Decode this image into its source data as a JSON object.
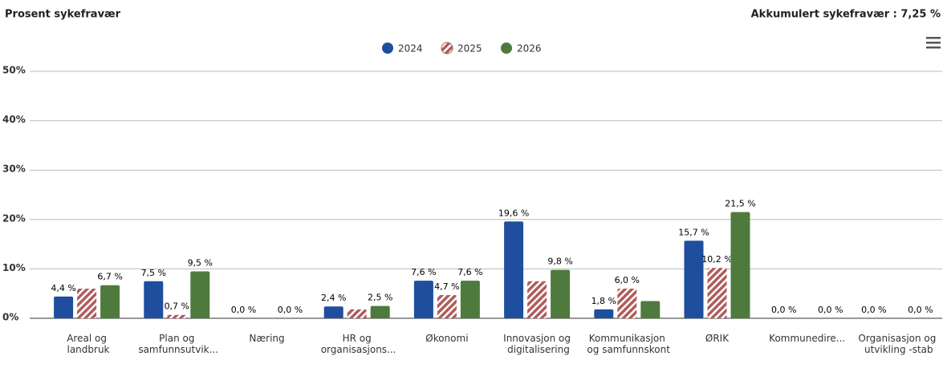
{
  "chart_data": {
    "type": "bar",
    "title": "Prosent sykefravær",
    "subtitle": "Akkumulert sykefravær : 7,25 %",
    "categories": [
      "Areal og landbruk",
      "Plan og samfunnsutvik...",
      "Næring",
      "HR og organisasjons...",
      "Økonomi",
      "Innovasjon og digitalisering",
      "Kommunikasjon og samfunnskont",
      "ØRIK",
      "Kommunedire...",
      "Organisasjon og utvikling -stab"
    ],
    "series": [
      {
        "name": "2024",
        "color": "#1f4e9e",
        "values": [
          4.4,
          7.5,
          0,
          2.4,
          7.6,
          19.6,
          1.8,
          15.7,
          0,
          0
        ],
        "value_labels": [
          "4,4 %",
          "7,5 %",
          "0,0 %",
          "2,4 %",
          "7,6 %",
          "19,6 %",
          "1,8 %",
          "15,7 %",
          "0,0 %",
          "0,0 %"
        ]
      },
      {
        "name": "2025",
        "color": "#b05c5c",
        "hatched": true,
        "values": [
          6.0,
          0.7,
          0,
          1.8,
          4.7,
          7.5,
          6.0,
          10.2,
          0,
          0
        ],
        "value_labels": [
          null,
          "0,7 %",
          null,
          null,
          "4,7 %",
          null,
          "6,0 %",
          "10,2 %",
          null,
          null
        ]
      },
      {
        "name": "2026",
        "color": "#4f7a3e",
        "values": [
          6.7,
          9.5,
          0,
          2.5,
          7.6,
          9.8,
          3.5,
          21.5,
          0,
          0
        ],
        "value_labels": [
          "6,7 %",
          "9,5 %",
          "0,0 %",
          "2,5 %",
          "7,6 %",
          "9,8 %",
          null,
          "21,5 %",
          "0,0 %",
          "0,0 %"
        ]
      }
    ],
    "ylim": [
      0,
      50
    ],
    "yticks": [
      {
        "value": 0,
        "label": "0%"
      },
      {
        "value": 10,
        "label": "10%"
      },
      {
        "value": 20,
        "label": "20%"
      },
      {
        "value": 30,
        "label": "30%"
      },
      {
        "value": 40,
        "label": "40%"
      },
      {
        "value": 50,
        "label": "50%"
      }
    ],
    "grid": true,
    "legend": "top"
  }
}
